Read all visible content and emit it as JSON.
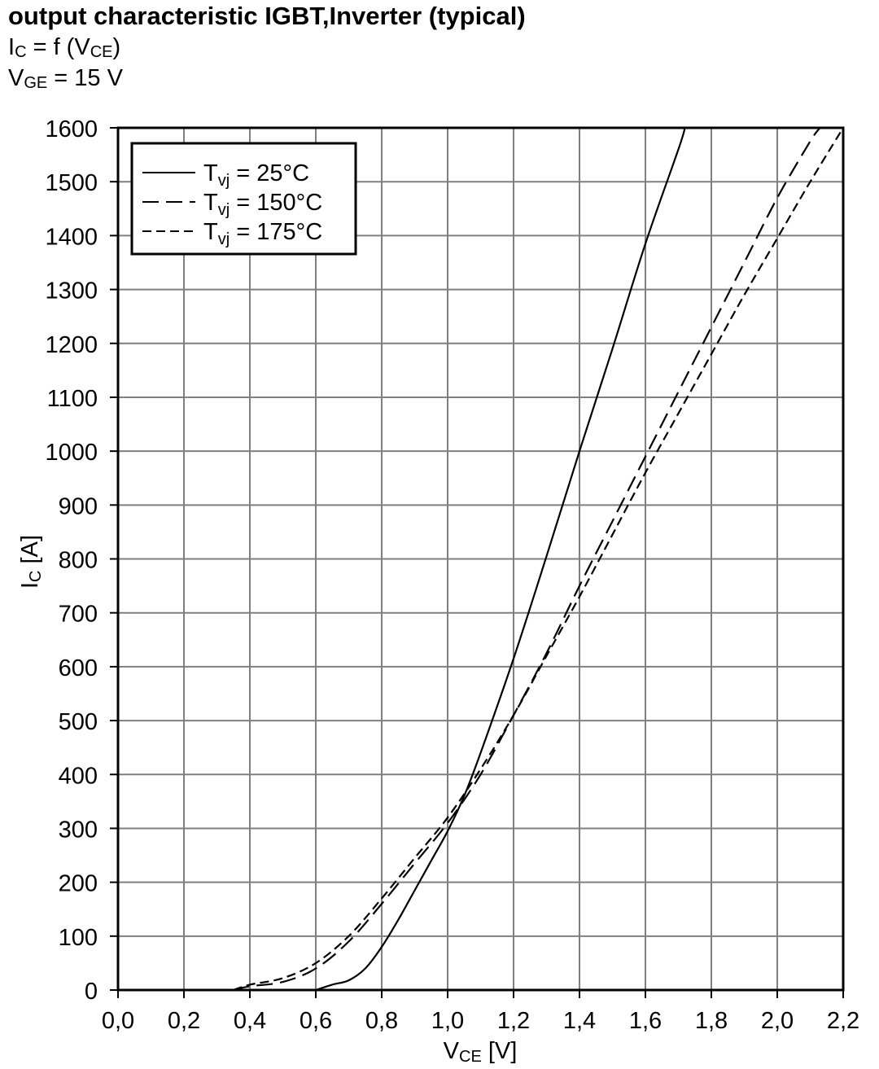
{
  "chart_data": {
    "type": "line",
    "title": "output characteristic IGBT,Inverter (typical)",
    "subtitle_lines": [
      {
        "main": "I",
        "sub": "C",
        "rest": " = f (V",
        "sub2": "CE",
        "end": ")"
      },
      {
        "main": "V",
        "sub": "GE",
        "rest": " = 15 V",
        "sub2": "",
        "end": ""
      }
    ],
    "xlabel": {
      "main": "V",
      "sub": "CE",
      "unit": " [V]"
    },
    "ylabel": {
      "main": "I",
      "sub": "C",
      "unit": " [A]"
    },
    "xlim": [
      0,
      2.2
    ],
    "ylim": [
      0,
      1600
    ],
    "x_ticks": [
      0,
      0.2,
      0.4,
      0.6,
      0.8,
      1.0,
      1.2,
      1.4,
      1.6,
      1.8,
      2.0,
      2.2
    ],
    "x_tick_labels": [
      "0,0",
      "0,2",
      "0,4",
      "0,6",
      "0,8",
      "1,0",
      "1,2",
      "1,4",
      "1,6",
      "1,8",
      "2,0",
      "2,2"
    ],
    "y_ticks": [
      0,
      100,
      200,
      300,
      400,
      500,
      600,
      700,
      800,
      900,
      1000,
      1100,
      1200,
      1300,
      1400,
      1500,
      1600
    ],
    "y_tick_labels": [
      "0",
      "100",
      "200",
      "300",
      "400",
      "500",
      "600",
      "700",
      "800",
      "900",
      "1000",
      "1100",
      "1200",
      "1300",
      "1400",
      "1500",
      "1600"
    ],
    "grid": true,
    "legend_position": "top-left",
    "series": [
      {
        "name": "Tvj = 25°C",
        "legend": {
          "main": "T",
          "sub": "vj",
          "rest": " = 25°C"
        },
        "style": "solid",
        "x": [
          0.6,
          0.65,
          0.7,
          0.75,
          0.8,
          0.85,
          0.9,
          0.95,
          1.0,
          1.05,
          1.1,
          1.2,
          1.3,
          1.4,
          1.5,
          1.6,
          1.7,
          1.72
        ],
        "y": [
          0,
          10,
          18,
          40,
          80,
          130,
          185,
          240,
          295,
          360,
          440,
          615,
          805,
          1000,
          1190,
          1385,
          1560,
          1600
        ]
      },
      {
        "name": "Tvj = 150°C",
        "legend": {
          "main": "T",
          "sub": "vj",
          "rest": " = 150°C"
        },
        "style": "long-dash",
        "x": [
          0.35,
          0.4,
          0.5,
          0.6,
          0.7,
          0.8,
          0.9,
          1.0,
          1.1,
          1.2,
          1.3,
          1.4,
          1.5,
          1.6,
          1.7,
          1.8,
          1.9,
          2.0,
          2.1,
          2.13
        ],
        "y": [
          0,
          7,
          15,
          40,
          90,
          160,
          235,
          310,
          400,
          510,
          625,
          750,
          870,
          990,
          1110,
          1230,
          1350,
          1470,
          1575,
          1600
        ]
      },
      {
        "name": "Tvj = 175°C",
        "legend": {
          "main": "T",
          "sub": "vj",
          "rest": " = 175°C"
        },
        "style": "short-dash",
        "x": [
          0.35,
          0.4,
          0.5,
          0.6,
          0.7,
          0.8,
          0.9,
          1.0,
          1.1,
          1.2,
          1.3,
          1.4,
          1.5,
          1.6,
          1.7,
          1.8,
          1.9,
          2.0,
          2.1,
          2.2
        ],
        "y": [
          0,
          10,
          22,
          50,
          100,
          170,
          245,
          320,
          410,
          510,
          620,
          730,
          845,
          960,
          1070,
          1180,
          1290,
          1395,
          1500,
          1600
        ]
      }
    ]
  }
}
